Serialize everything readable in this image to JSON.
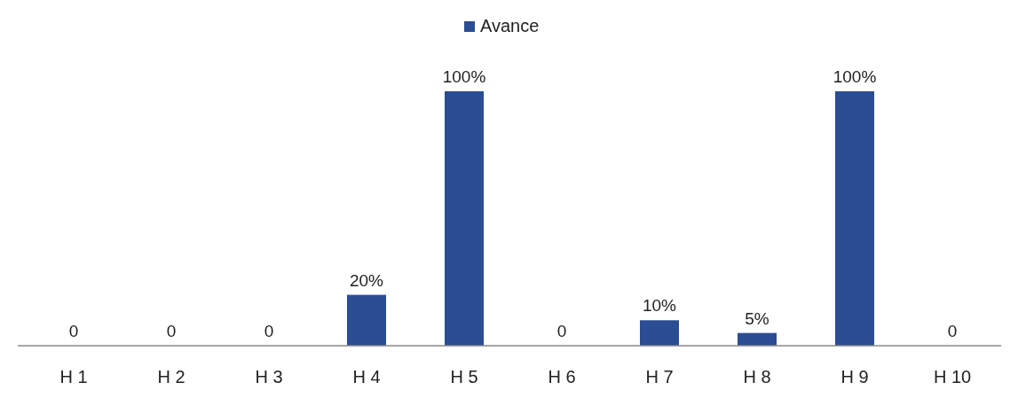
{
  "chart_data": {
    "type": "bar",
    "categories": [
      "H 1",
      "H 2",
      "H 3",
      "H 4",
      "H 5",
      "H 6",
      "H 7",
      "H 8",
      "H 9",
      "H 10"
    ],
    "series": [
      {
        "name": "Avance",
        "color": "#2a4d94",
        "values": [
          0,
          0,
          0,
          20,
          100,
          0,
          10,
          5,
          100,
          0
        ],
        "value_labels": [
          "0",
          "0",
          "0",
          "20%",
          "100%",
          "0",
          "10%",
          "5%",
          "100%",
          "0"
        ]
      }
    ],
    "legend": "top"
  }
}
